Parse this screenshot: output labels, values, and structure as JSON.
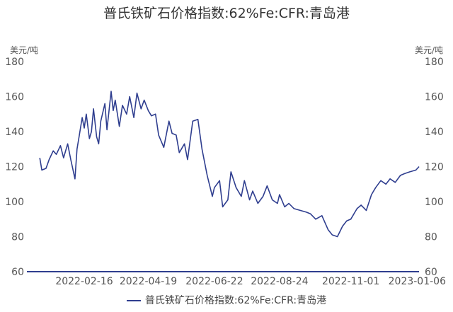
{
  "chart_data": {
    "type": "line",
    "title": "普氏铁矿石价格指数:62%Fe:CFR:青岛港",
    "ylabel_left": "美元/吨",
    "ylabel_right": "美元/吨",
    "ylim": [
      60,
      180
    ],
    "yticks": [
      60,
      80,
      100,
      120,
      140,
      160,
      180
    ],
    "x_tick_labels": [
      "2022-02-16",
      "2022-04-19",
      "2022-06-22",
      "2022-08-24",
      "2022-11-01",
      "2023-01-06"
    ],
    "grid": false,
    "legend_position": "bottom",
    "colors": {
      "series": "#2f3e8f",
      "axis": "#2f3e8f"
    },
    "series": [
      {
        "name": "普氏铁矿石价格指数:62%Fe:CFR:青岛港",
        "x": [
          "2022-01-04",
          "2022-01-06",
          "2022-01-10",
          "2022-01-13",
          "2022-01-17",
          "2022-01-20",
          "2022-01-24",
          "2022-01-27",
          "2022-01-31",
          "2022-02-03",
          "2022-02-07",
          "2022-02-09",
          "2022-02-11",
          "2022-02-14",
          "2022-02-16",
          "2022-02-18",
          "2022-02-21",
          "2022-02-23",
          "2022-02-25",
          "2022-02-28",
          "2022-03-02",
          "2022-03-04",
          "2022-03-08",
          "2022-03-10",
          "2022-03-14",
          "2022-03-16",
          "2022-03-18",
          "2022-03-22",
          "2022-03-25",
          "2022-03-29",
          "2022-04-01",
          "2022-04-05",
          "2022-04-08",
          "2022-04-12",
          "2022-04-15",
          "2022-04-19",
          "2022-04-22",
          "2022-04-26",
          "2022-04-29",
          "2022-05-04",
          "2022-05-09",
          "2022-05-12",
          "2022-05-16",
          "2022-05-19",
          "2022-05-24",
          "2022-05-27",
          "2022-06-01",
          "2022-06-06",
          "2022-06-10",
          "2022-06-15",
          "2022-06-20",
          "2022-06-22",
          "2022-06-27",
          "2022-06-30",
          "2022-07-05",
          "2022-07-08",
          "2022-07-13",
          "2022-07-18",
          "2022-07-21",
          "2022-07-26",
          "2022-07-29",
          "2022-08-03",
          "2022-08-08",
          "2022-08-12",
          "2022-08-17",
          "2022-08-22",
          "2022-08-24",
          "2022-08-29",
          "2022-09-02",
          "2022-09-07",
          "2022-09-13",
          "2022-09-19",
          "2022-09-23",
          "2022-09-28",
          "2022-10-04",
          "2022-10-10",
          "2022-10-14",
          "2022-10-19",
          "2022-10-24",
          "2022-10-28",
          "2022-11-01",
          "2022-11-07",
          "2022-11-11",
          "2022-11-16",
          "2022-11-21",
          "2022-11-25",
          "2022-11-30",
          "2022-12-05",
          "2022-12-09",
          "2022-12-14",
          "2022-12-19",
          "2022-12-23",
          "2022-12-28",
          "2023-01-03",
          "2023-01-06"
        ],
        "y": [
          125,
          118,
          119,
          124,
          129,
          127,
          132,
          125,
          133,
          124,
          113,
          130,
          137,
          148,
          142,
          150,
          136,
          140,
          153,
          137,
          133,
          146,
          156,
          141,
          163,
          152,
          158,
          143,
          155,
          150,
          160,
          148,
          162,
          153,
          158,
          152,
          149,
          150,
          138,
          131,
          146,
          139,
          138,
          128,
          133,
          124,
          146,
          147,
          130,
          115,
          103,
          108,
          112,
          97,
          101,
          117,
          108,
          103,
          112,
          101,
          106,
          99,
          103,
          109,
          101,
          99,
          104,
          97,
          99,
          96,
          95,
          94,
          93,
          90,
          92,
          84,
          81,
          80,
          86,
          89,
          90,
          96,
          98,
          95,
          104,
          108,
          112,
          110,
          113,
          111,
          115,
          116,
          117,
          118,
          120
        ]
      }
    ]
  },
  "legend": {
    "label": "普氏铁矿石价格指数:62%Fe:CFR:青岛港"
  }
}
